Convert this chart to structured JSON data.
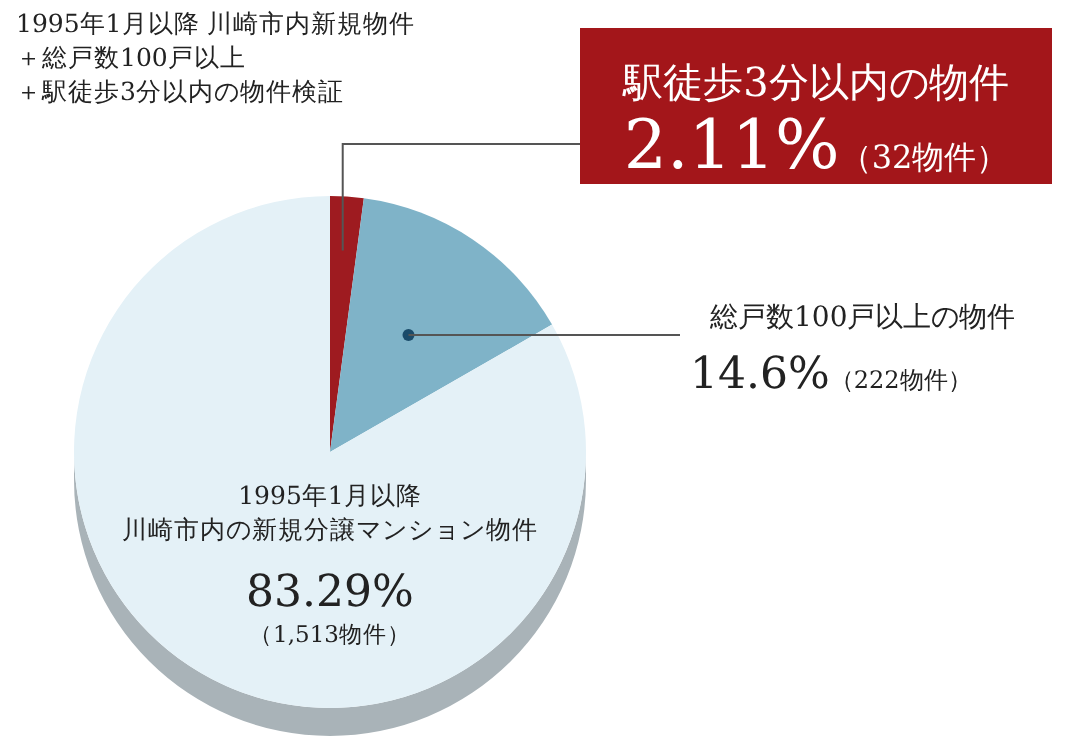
{
  "chart_data": {
    "type": "pie",
    "title": "1995年1月以降 川崎市内新規物件",
    "annotations": [
      "＋総戸数100戸以上",
      "＋駅徒歩3分以内の物件検証"
    ],
    "categories": [
      "駅徒歩3分以内の物件",
      "総戸数100戸以上の物件",
      "1995年1月以降川崎市内の新規分譲マンション物件"
    ],
    "values": [
      2.11,
      14.6,
      83.29
    ],
    "colors": [
      "#9e1b20",
      "#7fb3c8",
      "#e4f1f7"
    ],
    "value_labels": [
      "2.11%（32物件）",
      "14.6%（222物件）",
      "83.29%（1,513物件）"
    ]
  }
}
